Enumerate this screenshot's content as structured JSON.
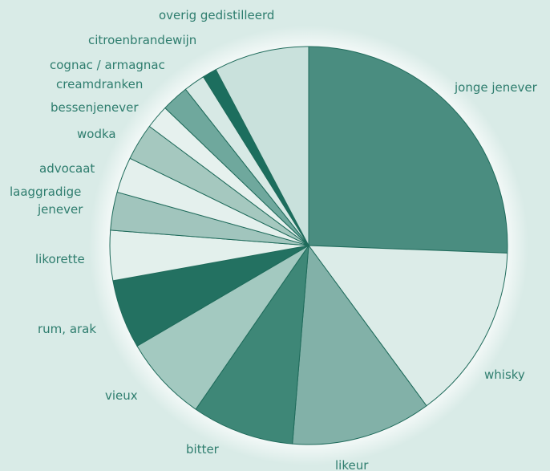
{
  "chart_data": {
    "type": "pie",
    "title": "",
    "unit": "%",
    "categories": [
      "jonge jenever",
      "whisky",
      "likeur",
      "bitter",
      "vieux",
      "rum, arak",
      "likorette",
      "laaggradige jenever",
      "advocaat",
      "wodka",
      "bessenjenever",
      "creamdranken",
      "cognac / armagnac",
      "citroenbrandewijn",
      "overig gedistilleerd"
    ],
    "label_lines": [
      [
        "jonge jenever"
      ],
      [
        "whisky"
      ],
      [
        "likeur"
      ],
      [
        "bitter"
      ],
      [
        "vieux"
      ],
      [
        "rum, arak"
      ],
      [
        "likorette"
      ],
      [
        "laaggradige",
        "jenever"
      ],
      [
        "advocaat"
      ],
      [
        "wodka"
      ],
      [
        "bessenjenever"
      ],
      [
        "creamdranken"
      ],
      [
        "cognac / armagnac"
      ],
      [
        "citroenbrandewijn"
      ],
      [
        "overig gedistilleerd"
      ]
    ],
    "values": [
      26.5,
      14.8,
      11.8,
      8.6,
      7.2,
      5.8,
      4.2,
      3.2,
      3.0,
      3.1,
      2.0,
      2.3,
      1.8,
      1.2,
      8.0
    ],
    "start_angle_deg": 0,
    "direction": "clockwise",
    "legend": "none (labels placed around pie)",
    "colors": {
      "background": "#d9ebe7",
      "border": "#1f6b5b",
      "label_text": "#2e7d6e",
      "slices": [
        "#4a8d80",
        "#dcece8",
        "#82b1a8",
        "#3e8777",
        "#a3c9c0",
        "#237161",
        "#e3f0ec",
        "#a1c5bd",
        "#e4f0ed",
        "#a5c8bf",
        "#e6f1ee",
        "#6fa89d",
        "#d7e9e5",
        "#1c6e5e",
        "#c9e1dc"
      ]
    }
  }
}
